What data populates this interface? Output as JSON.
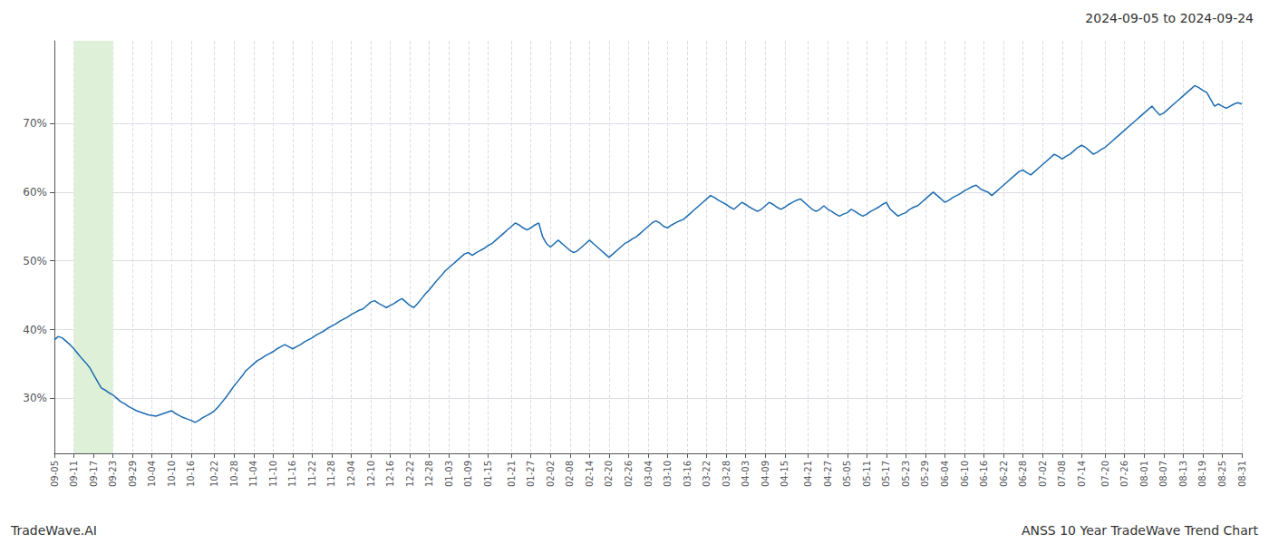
{
  "chart_data": {
    "type": "line",
    "title": "2024-09-05 to 2024-09-24",
    "annotations": [
      "TradeWave.AI",
      "ANSS 10 Year TradeWave Trend Chart"
    ],
    "color": "#1c6bb0",
    "grid": true,
    "highlight": {
      "from": "09-11",
      "to": "09-23",
      "color": "#dff0d8"
    },
    "ylim": [
      22,
      82
    ],
    "yticks": [
      {
        "value": 30,
        "label": "30%"
      },
      {
        "value": 40,
        "label": "40%"
      },
      {
        "value": 50,
        "label": "50%"
      },
      {
        "value": 60,
        "label": "60%"
      },
      {
        "value": 70,
        "label": "70%"
      }
    ],
    "categories": [
      "09-05",
      null,
      null,
      null,
      null,
      "09-11",
      null,
      null,
      null,
      null,
      "09-17",
      null,
      null,
      null,
      null,
      "09-23",
      null,
      null,
      null,
      null,
      "09-29",
      null,
      null,
      null,
      null,
      "10-04",
      null,
      null,
      null,
      null,
      "10-10",
      null,
      null,
      null,
      null,
      "10-16",
      null,
      null,
      null,
      null,
      null,
      "10-22",
      null,
      null,
      null,
      null,
      "10-28",
      null,
      null,
      null,
      null,
      "11-04",
      null,
      null,
      null,
      null,
      "11-10",
      null,
      null,
      null,
      null,
      "11-16",
      null,
      null,
      null,
      null,
      "11-22",
      null,
      null,
      null,
      null,
      "11-28",
      null,
      null,
      null,
      null,
      "12-04",
      null,
      null,
      null,
      null,
      "12-10",
      null,
      null,
      null,
      null,
      "12-16",
      null,
      null,
      null,
      null,
      "12-22",
      null,
      null,
      null,
      null,
      "12-28",
      null,
      null,
      null,
      null,
      "01-03",
      null,
      null,
      null,
      null,
      "01-09",
      null,
      null,
      null,
      null,
      "01-15",
      null,
      null,
      null,
      null,
      null,
      "01-21",
      null,
      null,
      null,
      null,
      "01-27",
      null,
      null,
      null,
      null,
      "02-02",
      null,
      null,
      null,
      null,
      "02-08",
      null,
      null,
      null,
      null,
      "02-14",
      null,
      null,
      null,
      null,
      "02-20",
      null,
      null,
      null,
      null,
      "02-26",
      null,
      null,
      null,
      null,
      "03-04",
      null,
      null,
      null,
      null,
      "03-10",
      null,
      null,
      null,
      null,
      "03-16",
      null,
      null,
      null,
      null,
      "03-22",
      null,
      null,
      null,
      null,
      "03-28",
      null,
      null,
      null,
      null,
      "04-03",
      null,
      null,
      null,
      null,
      "04-09",
      null,
      null,
      null,
      null,
      "04-15",
      null,
      null,
      null,
      null,
      null,
      "04-21",
      null,
      null,
      null,
      null,
      "04-27",
      null,
      null,
      null,
      null,
      "05-05",
      null,
      null,
      null,
      null,
      "05-11",
      null,
      null,
      null,
      null,
      "05-17",
      null,
      null,
      null,
      null,
      "05-23",
      null,
      null,
      null,
      null,
      "05-29",
      null,
      null,
      null,
      null,
      "06-04",
      null,
      null,
      null,
      null,
      "06-10",
      null,
      null,
      null,
      null,
      "06-16",
      null,
      null,
      null,
      null,
      "06-22",
      null,
      null,
      null,
      null,
      "06-28",
      null,
      null,
      null,
      null,
      "07-02",
      null,
      null,
      null,
      null,
      "07-08",
      null,
      null,
      null,
      null,
      "07-14",
      null,
      null,
      null,
      null,
      null,
      "07-20",
      null,
      null,
      null,
      null,
      "07-26",
      null,
      null,
      null,
      null,
      "08-01",
      null,
      null,
      null,
      null,
      "08-07",
      null,
      null,
      null,
      null,
      "08-13",
      null,
      null,
      null,
      null,
      "08-19",
      null,
      null,
      null,
      null,
      "08-25",
      null,
      null,
      null,
      null,
      "08-31"
    ],
    "values": [
      38.5,
      39.0,
      38.8,
      38.3,
      37.8,
      37.2,
      36.5,
      35.8,
      35.2,
      34.5,
      33.5,
      32.5,
      31.5,
      31.2,
      30.8,
      30.5,
      30.0,
      29.5,
      29.2,
      28.8,
      28.5,
      28.2,
      28.0,
      27.8,
      27.6,
      27.5,
      27.4,
      27.6,
      27.8,
      28.0,
      28.2,
      27.8,
      27.5,
      27.2,
      27.0,
      26.8,
      26.5,
      26.8,
      27.2,
      27.5,
      27.8,
      28.2,
      28.8,
      29.5,
      30.2,
      31.0,
      31.8,
      32.5,
      33.2,
      34.0,
      34.5,
      35.0,
      35.5,
      35.8,
      36.2,
      36.5,
      36.8,
      37.2,
      37.5,
      37.8,
      37.5,
      37.2,
      37.5,
      37.8,
      38.2,
      38.5,
      38.8,
      39.2,
      39.5,
      39.8,
      40.2,
      40.5,
      40.8,
      41.2,
      41.5,
      41.8,
      42.2,
      42.5,
      42.8,
      43.0,
      43.5,
      44.0,
      44.2,
      43.8,
      43.5,
      43.2,
      43.5,
      43.8,
      44.2,
      44.5,
      44.0,
      43.5,
      43.2,
      43.8,
      44.5,
      45.2,
      45.8,
      46.5,
      47.2,
      47.8,
      48.5,
      49.0,
      49.5,
      50.0,
      50.5,
      51.0,
      51.2,
      50.8,
      51.2,
      51.5,
      51.8,
      52.2,
      52.5,
      53.0,
      53.5,
      54.0,
      54.5,
      55.0,
      55.5,
      55.2,
      54.8,
      54.5,
      54.8,
      55.2,
      55.5,
      53.5,
      52.5,
      52.0,
      52.5,
      53.0,
      52.5,
      52.0,
      51.5,
      51.2,
      51.5,
      52.0,
      52.5,
      53.0,
      52.5,
      52.0,
      51.5,
      51.0,
      50.5,
      51.0,
      51.5,
      52.0,
      52.5,
      52.8,
      53.2,
      53.5,
      54.0,
      54.5,
      55.0,
      55.5,
      55.8,
      55.5,
      55.0,
      54.8,
      55.2,
      55.5,
      55.8,
      56.0,
      56.5,
      57.0,
      57.5,
      58.0,
      58.5,
      59.0,
      59.5,
      59.2,
      58.8,
      58.5,
      58.2,
      57.8,
      57.5,
      58.0,
      58.5,
      58.2,
      57.8,
      57.5,
      57.2,
      57.5,
      58.0,
      58.5,
      58.2,
      57.8,
      57.5,
      57.8,
      58.2,
      58.5,
      58.8,
      59.0,
      58.5,
      58.0,
      57.5,
      57.2,
      57.5,
      58.0,
      57.5,
      57.2,
      56.8,
      56.5,
      56.8,
      57.0,
      57.5,
      57.2,
      56.8,
      56.5,
      56.8,
      57.2,
      57.5,
      57.8,
      58.2,
      58.5,
      57.5,
      57.0,
      56.5,
      56.8,
      57.0,
      57.5,
      57.8,
      58.0,
      58.5,
      59.0,
      59.5,
      60.0,
      59.5,
      59.0,
      58.5,
      58.8,
      59.2,
      59.5,
      59.8,
      60.2,
      60.5,
      60.8,
      61.0,
      60.5,
      60.2,
      60.0,
      59.5,
      60.0,
      60.5,
      61.0,
      61.5,
      62.0,
      62.5,
      63.0,
      63.2,
      62.8,
      62.5,
      63.0,
      63.5,
      64.0,
      64.5,
      65.0,
      65.5,
      65.2,
      64.8,
      65.2,
      65.5,
      66.0,
      66.5,
      66.8,
      66.5,
      66.0,
      65.5,
      65.8,
      66.2,
      66.5,
      67.0,
      67.5,
      68.0,
      68.5,
      69.0,
      69.5,
      70.0,
      70.5,
      71.0,
      71.5,
      72.0,
      72.5,
      71.8,
      71.2,
      71.5,
      72.0,
      72.5,
      73.0,
      73.5,
      74.0,
      74.5,
      75.0,
      75.5,
      75.2,
      74.8,
      74.5,
      73.5,
      72.5,
      72.8,
      72.5,
      72.2,
      72.5,
      72.8,
      73.0,
      72.8
    ]
  }
}
